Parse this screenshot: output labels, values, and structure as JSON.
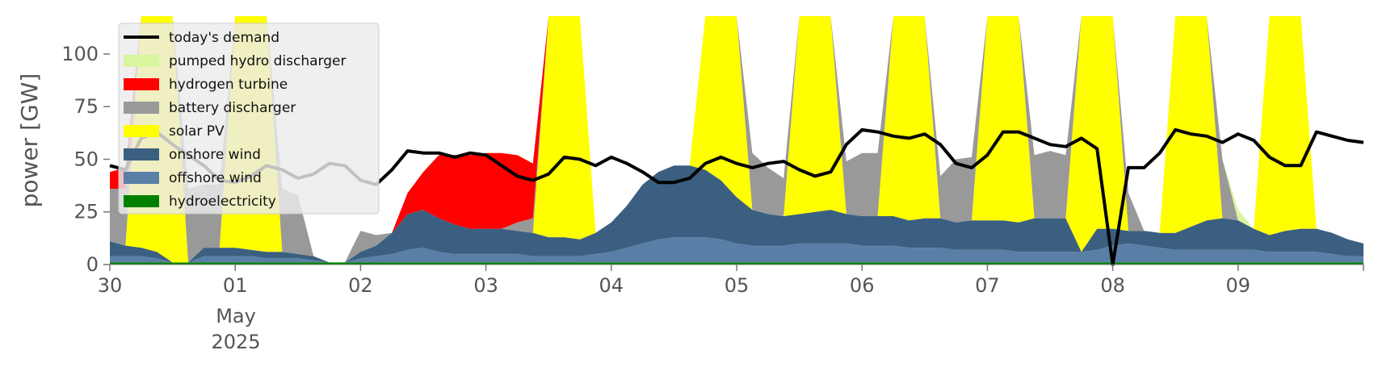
{
  "chart_data": {
    "type": "area",
    "ylabel": "power [GW]",
    "ylim": [
      0,
      118
    ],
    "xlim": [
      "2025-04-30T00:00",
      "2025-05-10T00:00"
    ],
    "y_ticks": [
      0,
      25,
      50,
      75,
      100
    ],
    "x_ticks": [
      {
        "x": "2025-04-30",
        "label": "30"
      },
      {
        "x": "2025-05-01",
        "label": "01"
      },
      {
        "x": "2025-05-02",
        "label": "02"
      },
      {
        "x": "2025-05-03",
        "label": "03"
      },
      {
        "x": "2025-05-04",
        "label": "04"
      },
      {
        "x": "2025-05-05",
        "label": "05"
      },
      {
        "x": "2025-05-06",
        "label": "06"
      },
      {
        "x": "2025-05-07",
        "label": "07"
      },
      {
        "x": "2025-05-08",
        "label": "08"
      },
      {
        "x": "2025-05-09",
        "label": "09"
      }
    ],
    "x_sublabels": {
      "month": "May",
      "year": "2025"
    },
    "grid": false,
    "legend_position": "upper-left",
    "time_step_hours": 3,
    "x_start": "2025-04-30T00:00",
    "stack_order": [
      "hydroelectricity",
      "offshore wind",
      "onshore wind",
      "solar PV",
      "battery discharger",
      "hydrogen turbine",
      "pumped hydro discharger"
    ],
    "series": [
      {
        "name": "hydroelectricity",
        "color": "#008000",
        "values": [
          1,
          1,
          1,
          1,
          1,
          1,
          1,
          1,
          1,
          1,
          1,
          1,
          1,
          1,
          1,
          1,
          1,
          1,
          1,
          1,
          1,
          1,
          1,
          1,
          1,
          1,
          1,
          1,
          1,
          1,
          1,
          1,
          1,
          1,
          1,
          1,
          1,
          1,
          1,
          1,
          1,
          1,
          1,
          1,
          1,
          1,
          1,
          1,
          1,
          1,
          1,
          1,
          1,
          1,
          1,
          1,
          1,
          1,
          1,
          1,
          1,
          1,
          1,
          1,
          1,
          1,
          1,
          1,
          1,
          1,
          1,
          1,
          1,
          1,
          1,
          1,
          1,
          1,
          1,
          1,
          1
        ]
      },
      {
        "name": "offshore wind",
        "color": "#5a7fa6",
        "values": [
          3,
          3,
          3,
          2,
          0,
          0,
          3,
          3,
          3,
          3,
          2,
          2,
          2,
          1,
          0,
          0,
          2,
          3,
          4,
          6,
          7,
          5,
          4,
          4,
          4,
          4,
          4,
          3,
          3,
          3,
          3,
          4,
          5,
          7,
          9,
          11,
          12,
          12,
          12,
          11,
          9,
          8,
          8,
          8,
          9,
          9,
          9,
          9,
          8,
          8,
          8,
          7,
          7,
          7,
          6,
          6,
          6,
          6,
          5,
          5,
          5,
          5,
          5,
          6,
          8,
          9,
          8,
          7,
          6,
          6,
          6,
          6,
          6,
          6,
          5,
          5,
          5,
          5,
          4,
          3,
          3
        ]
      },
      {
        "name": "onshore wind",
        "color": "#3b5f80",
        "values": [
          7,
          5,
          4,
          3,
          0,
          0,
          4,
          4,
          4,
          3,
          3,
          3,
          2,
          2,
          0,
          0,
          3,
          5,
          10,
          17,
          18,
          16,
          14,
          12,
          12,
          12,
          11,
          11,
          9,
          9,
          8,
          10,
          14,
          20,
          28,
          32,
          34,
          34,
          32,
          28,
          22,
          17,
          15,
          14,
          14,
          15,
          16,
          14,
          14,
          14,
          14,
          13,
          14,
          14,
          13,
          14,
          14,
          14,
          14,
          16,
          16,
          16,
          0,
          10,
          8,
          6,
          7,
          7,
          8,
          11,
          14,
          15,
          14,
          10,
          8,
          10,
          11,
          11,
          10,
          8,
          6
        ]
      },
      {
        "name": "solar PV",
        "color": "#ffff00",
        "values": [
          0,
          0,
          120,
          120,
          120,
          0,
          0,
          0,
          120,
          120,
          120,
          0,
          0,
          0,
          0,
          0,
          0,
          0,
          0,
          0,
          0,
          0,
          0,
          0,
          0,
          0,
          0,
          0,
          120,
          120,
          120,
          0,
          0,
          0,
          0,
          0,
          0,
          0,
          120,
          120,
          120,
          0,
          0,
          0,
          120,
          120,
          120,
          0,
          0,
          0,
          120,
          120,
          120,
          0,
          0,
          0,
          120,
          120,
          120,
          0,
          0,
          0,
          120,
          120,
          120,
          0,
          0,
          0,
          120,
          120,
          120,
          0,
          0,
          0,
          120,
          120,
          120,
          0,
          0,
          0,
          0
        ]
      },
      {
        "name": "battery discharger",
        "color": "#999999",
        "values": [
          25,
          27,
          0,
          0,
          0,
          35,
          30,
          30,
          0,
          0,
          0,
          30,
          28,
          0,
          0,
          0,
          10,
          5,
          0,
          0,
          0,
          0,
          0,
          0,
          0,
          0,
          4,
          7,
          0,
          0,
          0,
          0,
          0,
          0,
          0,
          0,
          0,
          0,
          0,
          0,
          0,
          27,
          22,
          18,
          0,
          0,
          0,
          25,
          30,
          30,
          0,
          0,
          0,
          20,
          30,
          30,
          0,
          0,
          0,
          30,
          32,
          30,
          0,
          30,
          28,
          18,
          0,
          0,
          0,
          22,
          25,
          28,
          0,
          0,
          0,
          22,
          20,
          0,
          0,
          0,
          0
        ]
      },
      {
        "name": "hydrogen turbine",
        "color": "#ff0000",
        "values": [
          8,
          10,
          0,
          0,
          0,
          0,
          0,
          0,
          0,
          0,
          0,
          0,
          0,
          0,
          0,
          0,
          0,
          0,
          0,
          10,
          18,
          30,
          33,
          35,
          36,
          36,
          32,
          26,
          0,
          0,
          0,
          0,
          0,
          0,
          0,
          0,
          0,
          0,
          0,
          0,
          0,
          0,
          0,
          0,
          0,
          0,
          0,
          0,
          0,
          0,
          0,
          0,
          0,
          0,
          0,
          0,
          0,
          0,
          0,
          0,
          0,
          0,
          0,
          0,
          0,
          0,
          0,
          0,
          0,
          0,
          0,
          0,
          0,
          0,
          0,
          0,
          0,
          0,
          0,
          0,
          0
        ]
      },
      {
        "name": "pumped hydro discharger",
        "color": "#d9f5a0",
        "values": [
          0,
          0,
          0,
          0,
          0,
          0,
          0,
          0,
          0,
          0,
          0,
          0,
          0,
          0,
          0,
          0,
          0,
          0,
          0,
          0,
          0,
          0,
          0,
          0,
          0,
          0,
          0,
          0,
          0,
          0,
          0,
          0,
          0,
          0,
          0,
          0,
          0,
          0,
          0,
          0,
          0,
          0,
          0,
          0,
          0,
          0,
          0,
          0,
          0,
          0,
          0,
          0,
          0,
          0,
          0,
          0,
          0,
          0,
          0,
          0,
          0,
          0,
          0,
          0,
          0,
          0,
          0,
          0,
          0,
          0,
          0,
          0,
          5,
          0,
          0,
          0,
          0,
          0,
          0,
          0,
          0
        ]
      }
    ],
    "demand": {
      "name": "today's demand",
      "color": "#000000",
      "values": [
        47,
        45,
        60,
        63,
        57,
        52,
        47,
        40,
        39,
        42,
        47,
        45,
        41,
        43,
        48,
        47,
        40,
        38,
        45,
        54,
        53,
        53,
        51,
        53,
        52,
        47,
        42,
        40,
        43,
        51,
        50,
        47,
        51,
        48,
        44,
        39,
        39,
        41,
        48,
        51,
        48,
        46,
        48,
        49,
        45,
        42,
        44,
        57,
        64,
        63,
        61,
        60,
        62,
        57,
        48,
        46,
        52,
        63,
        63,
        60,
        57,
        56,
        60,
        55,
        0,
        46,
        46,
        53,
        64,
        62,
        61,
        58,
        62,
        59,
        51,
        47,
        47,
        63,
        61,
        59,
        58
      ]
    }
  }
}
